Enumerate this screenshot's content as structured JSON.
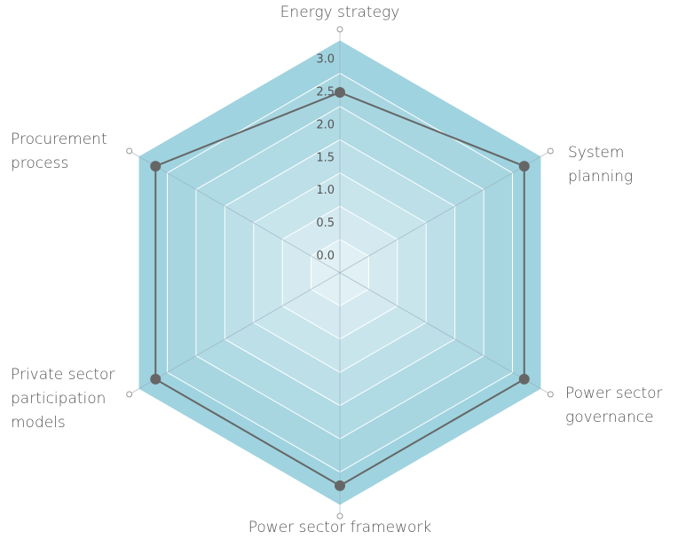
{
  "chart_data": {
    "type": "radar",
    "categories": [
      "Energy strategy",
      "System\nplanning",
      "Power sector\ngovernance",
      "Power sector framework",
      "Private sector\nparticipation\nmodels",
      "Procurement\nprocess"
    ],
    "series": [
      {
        "color": "#666666",
        "values": [
          2.5,
          3,
          3,
          3,
          3,
          3
        ]
      }
    ],
    "rlim": [
      -0.25,
      3.3
    ],
    "rticks": [
      {
        "value": 0,
        "label": "0.0"
      },
      0.5,
      {
        "value": 1,
        "label": "1.0"
      },
      1.5,
      {
        "value": 2,
        "label": "2.0"
      },
      2.5,
      {
        "value": 3,
        "label": "3.0"
      }
    ],
    "grid": true
  }
}
